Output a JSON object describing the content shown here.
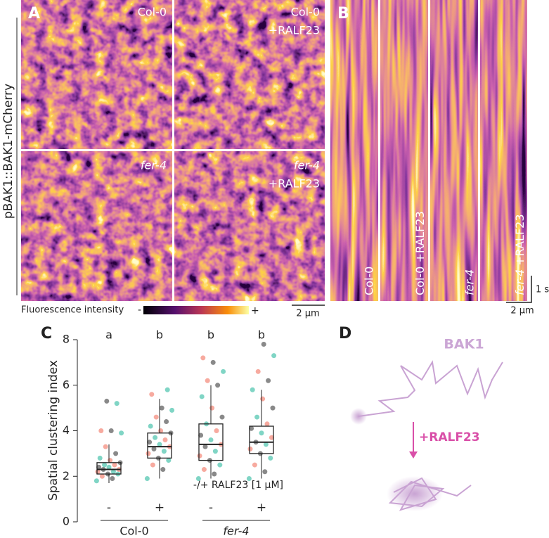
{
  "panels": {
    "a": {
      "letter": "A",
      "side_label": "pBAK1::BAK1-mCherry",
      "images": [
        {
          "line1": "Col-0"
        },
        {
          "line1": "Col-0",
          "line2": "+RALF23"
        },
        {
          "line1": "fer-4"
        },
        {
          "line1": "fer-4",
          "line2": "+RALF23"
        }
      ],
      "colorbar": {
        "label": "Fluorescence intensity",
        "low": "-",
        "high": "+"
      },
      "scale_bar": "2 µm"
    },
    "b": {
      "letter": "B",
      "strips": [
        {
          "genotype": "Col-0"
        },
        {
          "genotype": "Col-0",
          "treatment": "+RALF23"
        },
        {
          "genotype": "fer-4"
        },
        {
          "genotype": "fer-4",
          "treatment": "+RALF23"
        }
      ],
      "time_bar": "1 s",
      "scale_bar": "2 µm"
    },
    "c": {
      "letter": "C"
    },
    "d": {
      "letter": "D",
      "protein": "BAK1",
      "treatment": "+RALF23"
    }
  },
  "chart_data": {
    "type": "box",
    "ylabel": "Spatial clustering index",
    "categories": [
      "-",
      "+",
      "-",
      "+"
    ],
    "groups": [
      "Col-0",
      "fer-4"
    ],
    "letters": [
      "a",
      "b",
      "b",
      "b"
    ],
    "annotation": "-/+ RALF23 [1 µM]",
    "ylim": [
      0,
      8
    ],
    "yticks": [
      0,
      2,
      4,
      6,
      8
    ],
    "boxes": [
      {
        "min": 1.7,
        "q1": 2.1,
        "median": 2.3,
        "q3": 2.6,
        "max": 3.4
      },
      {
        "min": 1.9,
        "q1": 2.8,
        "median": 3.3,
        "q3": 3.9,
        "max": 5.4
      },
      {
        "min": 1.9,
        "q1": 2.7,
        "median": 3.4,
        "q3": 4.3,
        "max": 6.0
      },
      {
        "min": 1.9,
        "q1": 3.0,
        "median": 3.5,
        "q3": 4.2,
        "max": 5.8
      }
    ],
    "points": [
      [
        1.8,
        1.9,
        2.0,
        2.1,
        2.1,
        2.2,
        2.2,
        2.3,
        2.3,
        2.4,
        2.4,
        2.5,
        2.5,
        2.6,
        2.7,
        2.8,
        3.0,
        3.3,
        3.9,
        4.0,
        4.0,
        5.2,
        5.3
      ],
      [
        1.9,
        2.3,
        2.5,
        2.7,
        2.8,
        3.0,
        3.1,
        3.2,
        3.3,
        3.4,
        3.5,
        3.6,
        3.7,
        3.9,
        4.0,
        4.2,
        4.4,
        4.6,
        4.9,
        5.0,
        5.6,
        5.8
      ],
      [
        1.9,
        2.1,
        2.3,
        2.5,
        2.7,
        2.9,
        3.1,
        3.3,
        3.4,
        3.6,
        3.8,
        4.0,
        4.3,
        4.6,
        5.0,
        5.5,
        6.0,
        6.2,
        6.6,
        7.0,
        7.2
      ],
      [
        1.9,
        2.2,
        2.5,
        2.8,
        3.0,
        3.2,
        3.4,
        3.5,
        3.7,
        3.9,
        4.1,
        4.3,
        4.6,
        5.0,
        5.4,
        5.8,
        6.2,
        6.6,
        7.3,
        7.8
      ]
    ],
    "point_colors": [
      "#3cbfa6",
      "#4a4a4a",
      "#f27c6b"
    ],
    "box_color": "#222222"
  }
}
